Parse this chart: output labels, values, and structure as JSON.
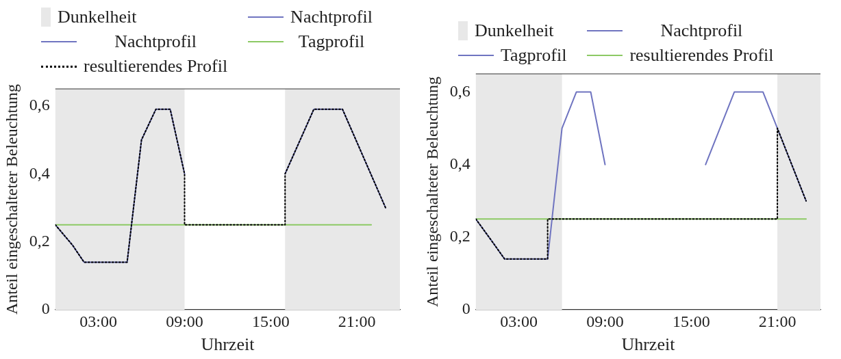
{
  "chart_data": [
    {
      "type": "line",
      "xlabel": "Uhrzeit",
      "ylabel": "Anteil eingeschalteter Beleuchtung",
      "xlim": [
        0,
        24
      ],
      "ylim": [
        0,
        0.65
      ],
      "xticks": [
        {
          "value": 3,
          "label": "03:00"
        },
        {
          "value": 9,
          "label": "09:00"
        },
        {
          "value": 15,
          "label": "15:00"
        },
        {
          "value": 21,
          "label": "21:00"
        }
      ],
      "yticks": [
        {
          "value": 0,
          "label": "0"
        },
        {
          "value": 0.2,
          "label": "0,2"
        },
        {
          "value": 0.4,
          "label": "0,4"
        },
        {
          "value": 0.6,
          "label": "0,6"
        }
      ],
      "grid": false,
      "legend": "top",
      "marker": "none",
      "bands": [
        {
          "axis": "x",
          "from": 0,
          "to": 9,
          "label": "Dunkelheit",
          "color": "#e8e8e8"
        },
        {
          "axis": "x",
          "from": 16,
          "to": 24,
          "color": "#e8e8e8"
        }
      ],
      "series": [
        {
          "name": "Nachtprofil",
          "color": "#6f74c0",
          "line_style": "solid",
          "x": [
            0,
            1.2,
            2,
            5,
            6,
            7,
            8,
            9
          ],
          "values": [
            0.25,
            0.19,
            0.14,
            0.14,
            0.5,
            0.59,
            0.59,
            0.4
          ]
        },
        {
          "name": "Nachtprofil",
          "color": "#6f74c0",
          "line_style": "solid",
          "x": [
            16,
            18,
            20,
            23
          ],
          "values": [
            0.4,
            0.59,
            0.59,
            0.3
          ]
        },
        {
          "name": "Tagprofil",
          "color": "#8cc964",
          "line_style": "solid",
          "x": [
            0,
            22
          ],
          "values": [
            0.25,
            0.25
          ]
        },
        {
          "name": "resultierendes Profil",
          "color": "#000000",
          "line_style": "dotted",
          "x": [
            0,
            1.2,
            2,
            5,
            6,
            7,
            8,
            9,
            9,
            16,
            16,
            18,
            20,
            23
          ],
          "values": [
            0.25,
            0.19,
            0.14,
            0.14,
            0.5,
            0.59,
            0.59,
            0.4,
            0.25,
            0.25,
            0.4,
            0.59,
            0.59,
            0.3
          ]
        }
      ]
    },
    {
      "type": "line",
      "xlabel": "Uhrzeit",
      "ylabel": "Anteil eingeschalteter Beleuchtung",
      "xlim": [
        0,
        24
      ],
      "ylim": [
        0,
        0.65
      ],
      "xticks": [
        {
          "value": 3,
          "label": "03:00"
        },
        {
          "value": 9,
          "label": "09:00"
        },
        {
          "value": 15,
          "label": "15:00"
        },
        {
          "value": 21,
          "label": "21:00"
        }
      ],
      "yticks": [
        {
          "value": 0,
          "label": "0"
        },
        {
          "value": 0.2,
          "label": "0,2"
        },
        {
          "value": 0.4,
          "label": "0,4"
        },
        {
          "value": 0.6,
          "label": "0,6"
        }
      ],
      "grid": false,
      "legend": "top",
      "marker": "none",
      "bands": [
        {
          "axis": "x",
          "from": 0,
          "to": 6,
          "label": "Dunkelheit",
          "color": "#e8e8e8"
        },
        {
          "axis": "x",
          "from": 21,
          "to": 24,
          "color": "#e8e8e8"
        }
      ],
      "series": [
        {
          "name": "Nachtprofil",
          "color": "#6f74c0",
          "line_style": "solid",
          "x": [
            0,
            1.1,
            2,
            5,
            6,
            7,
            8,
            9
          ],
          "values": [
            0.25,
            0.19,
            0.14,
            0.14,
            0.5,
            0.6,
            0.6,
            0.4
          ]
        },
        {
          "name": "Tagprofil",
          "color": "#6f74c0",
          "line_style": "solid",
          "x": [
            16,
            18,
            20,
            21,
            23
          ],
          "values": [
            0.4,
            0.6,
            0.6,
            0.5,
            0.3
          ]
        },
        {
          "name": "resultierendes Profil",
          "color": "#8cc964",
          "line_style": "solid",
          "x": [
            0,
            23
          ],
          "values": [
            0.25,
            0.25
          ]
        },
        {
          "color": "#000000",
          "line_style": "dotted",
          "x": [
            0,
            1.1,
            2,
            5,
            5,
            21,
            21,
            23
          ],
          "values": [
            0.25,
            0.19,
            0.14,
            0.14,
            0.25,
            0.25,
            0.5,
            0.3
          ]
        }
      ]
    }
  ]
}
